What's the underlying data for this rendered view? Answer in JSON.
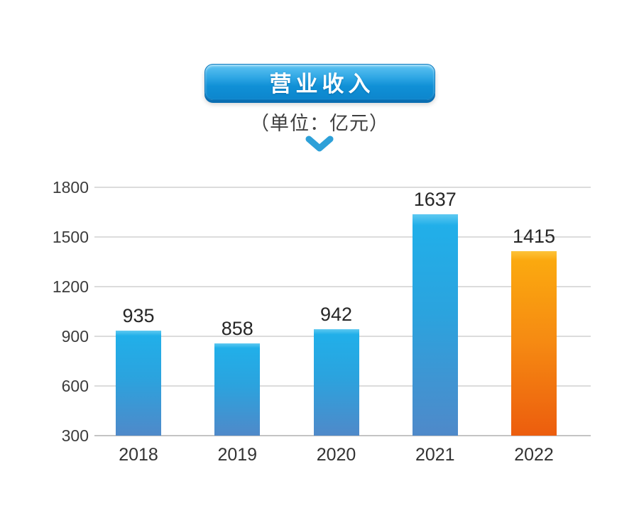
{
  "header": {
    "title": "营业收入",
    "subtitle": "（单位：亿元）"
  },
  "icons": {
    "chevron_down_color": "#2da0d8"
  },
  "colors": {
    "page_background": "#ffffff",
    "badge_gradient_top": "#5fc4f2",
    "badge_gradient_bottom": "#0d86cd",
    "badge_bottom_edge": "#0a6eb2",
    "badge_text": "#ffffff",
    "grid_line": "#dcdcdc",
    "baseline": "#c4c4c4",
    "axis_text": "#3c3c3c",
    "value_text": "#262626",
    "bar_blue_highlight": "#5ec9f1",
    "bar_blue_top": "#21afe9",
    "bar_blue_bottom": "#4f89c9",
    "bar_orange_highlight": "#fcc33a",
    "bar_orange_top": "#fba90f",
    "bar_orange_bottom": "#ec5d0e"
  },
  "chart_data": {
    "type": "bar",
    "title": "营业收入",
    "unit_label": "（单位：亿元）",
    "categories": [
      "2018",
      "2019",
      "2020",
      "2021",
      "2022"
    ],
    "values": [
      935,
      858,
      942,
      1637,
      1415
    ],
    "highlight_index": 4,
    "ylim": [
      300,
      1800
    ],
    "yticks": [
      1800,
      1500,
      1200,
      900,
      600,
      300
    ],
    "ytick_step": 300,
    "grid": true,
    "legend": false,
    "xlabel": "",
    "ylabel": ""
  }
}
